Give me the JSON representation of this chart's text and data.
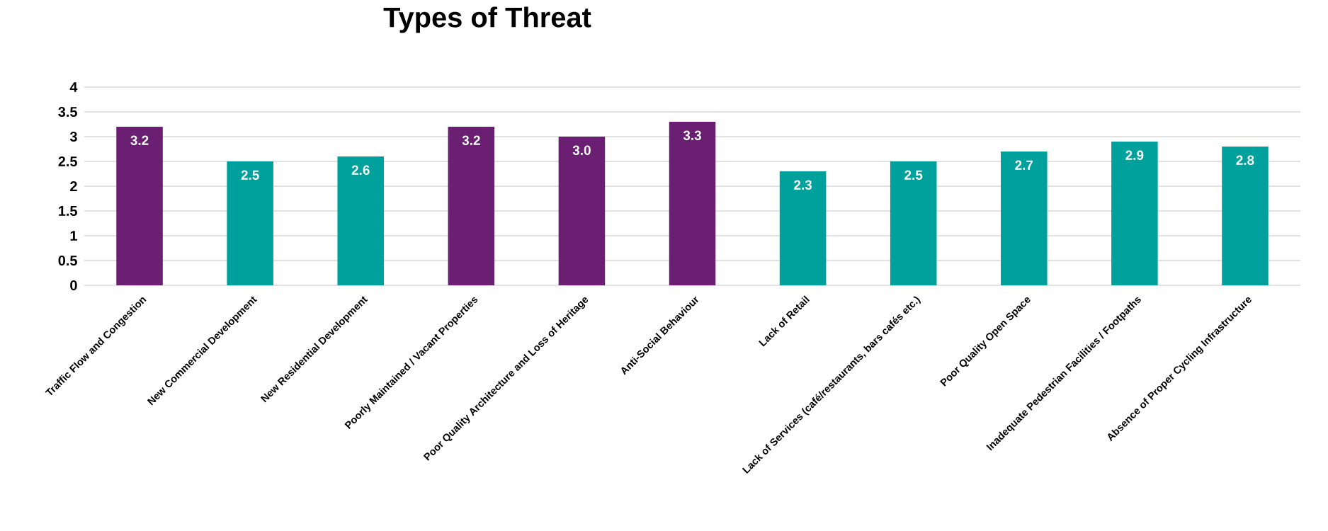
{
  "chart_data": {
    "type": "bar",
    "title": "Types of Threat",
    "categories": [
      "Traffic Flow and Congestion",
      "New Commercial Development",
      "New Residential Development",
      "Poorly Maintained / Vacant Properties",
      "Poor Quality Architecture and Loss of Heritage",
      "Anti-Social Behaviour",
      "Lack of Retail",
      "Lack of Services (café/restaurants, bars cafés etc.)",
      "Poor Quality Open Space",
      "Inadequate Pedestrian Facilities / Footpaths",
      "Absence of Proper Cycling Infrastructure"
    ],
    "values": [
      3.2,
      2.5,
      2.6,
      3.2,
      3.0,
      3.3,
      2.3,
      2.5,
      2.7,
      2.9,
      2.8
    ],
    "value_labels": [
      "3.2",
      "2.5",
      "2.6",
      "3.2",
      "3.0",
      "3.3",
      "2.3",
      "2.5",
      "2.7",
      "2.9",
      "2.8"
    ],
    "colors": [
      "#6b1f73",
      "#00a19c",
      "#00a19c",
      "#6b1f73",
      "#6b1f73",
      "#6b1f73",
      "#00a19c",
      "#00a19c",
      "#00a19c",
      "#00a19c",
      "#00a19c"
    ],
    "ylim": [
      0,
      4
    ],
    "yticks": [
      0,
      0.5,
      1,
      1.5,
      2,
      2.5,
      3,
      3.5,
      4
    ],
    "grid": "y"
  }
}
